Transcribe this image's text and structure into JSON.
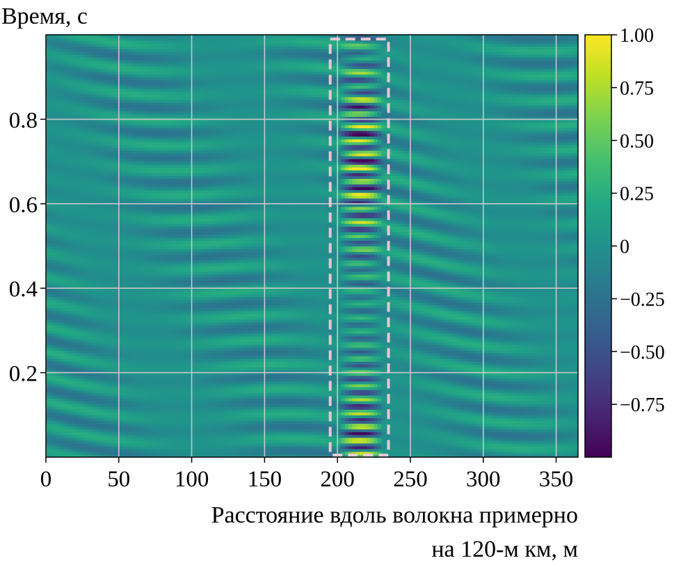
{
  "chart_data": {
    "type": "heatmap",
    "title": "",
    "ylabel": "Время, с",
    "xlabel_lines": [
      "Расстояние вдоль волокна примерно",
      "на 120-м км, м"
    ],
    "xlim": [
      0,
      365
    ],
    "ylim": [
      0,
      1.0
    ],
    "x_ticks": [
      0,
      50,
      100,
      150,
      200,
      250,
      300,
      350
    ],
    "x_tick_labels": [
      "0",
      "50",
      "100",
      "150",
      "200",
      "250",
      "300",
      "350"
    ],
    "y_ticks": [
      0.2,
      0.4,
      0.6,
      0.8
    ],
    "y_tick_labels": [
      "0.2",
      "0.4",
      "0.6",
      "0.8"
    ],
    "grid": true,
    "colormap": "viridis",
    "colorbar": {
      "range": [
        -1.0,
        1.0
      ],
      "ticks": [
        1.0,
        0.75,
        0.5,
        0.25,
        0,
        -0.25,
        -0.5,
        -0.75
      ],
      "tick_labels": [
        "1.00",
        "0.75",
        "0.50",
        "0.25",
        "0",
        "−0.25",
        "−0.50",
        "−0.75"
      ]
    },
    "highlight_box": {
      "x_range": [
        195,
        235
      ],
      "y_range": [
        0.005,
        0.99
      ],
      "style": "dashed",
      "color": "#e8c8d4"
    },
    "signal_band": {
      "x_range": [
        200,
        232
      ],
      "amplitude": 1.0
    },
    "background_amplitude": 0.25
  }
}
